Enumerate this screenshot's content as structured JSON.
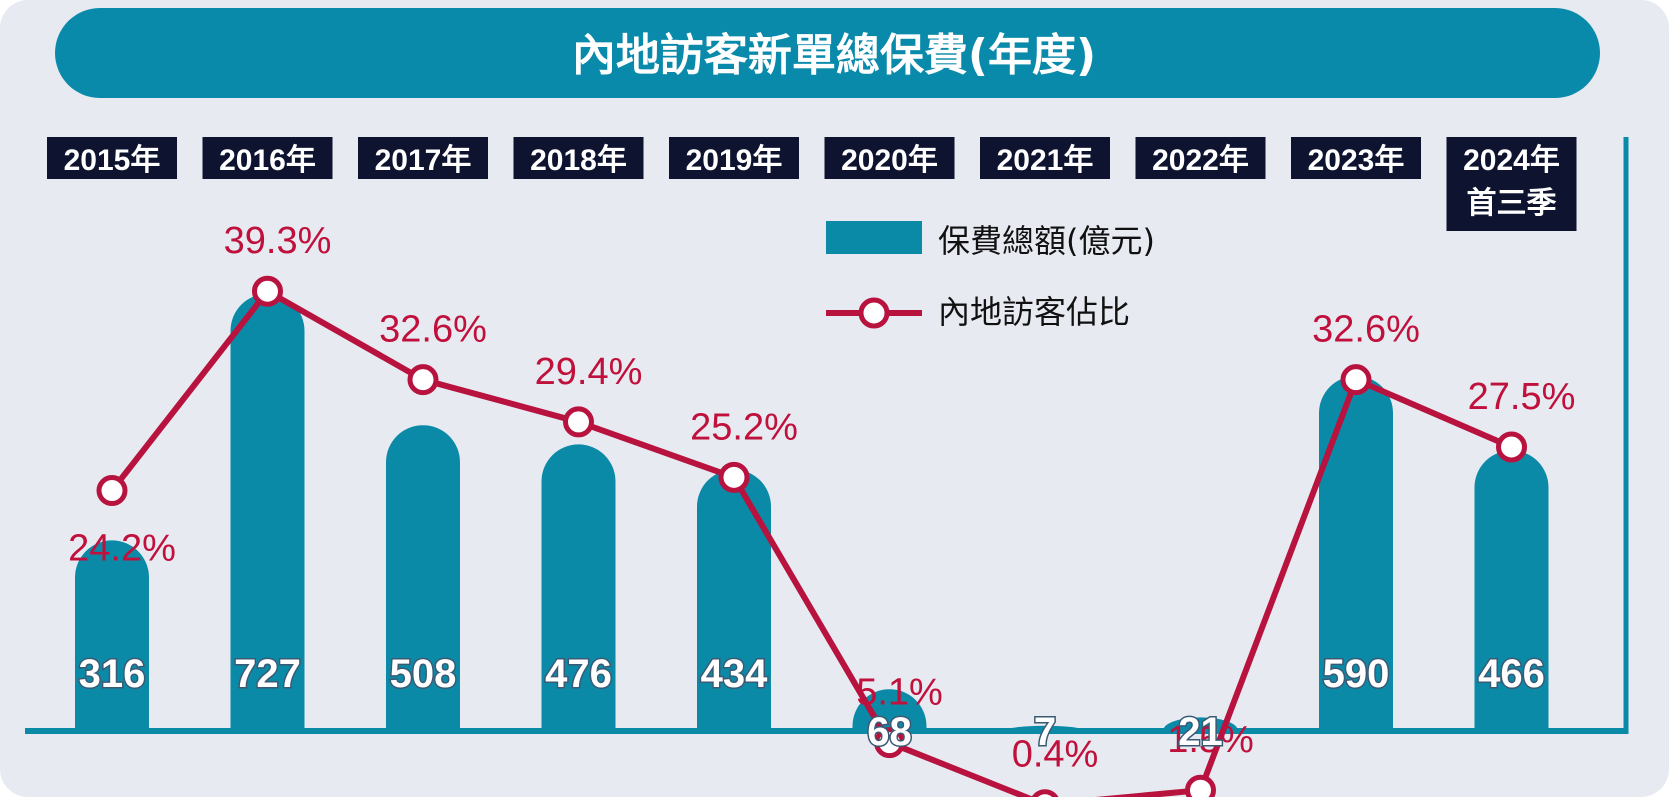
{
  "colors": {
    "panel": "#e7eaf1",
    "header": "#0a8aaa",
    "bar": "#0b8aa8",
    "axis": "#0b8aa8",
    "line": "#b8123f",
    "label_bg": "#0e1330",
    "pct_text": "#c0103c"
  },
  "chart_data": {
    "type": "bar",
    "title": "內地訪客新單總保費(年度)",
    "categories": [
      [
        "2015年"
      ],
      [
        "2016年"
      ],
      [
        "2017年"
      ],
      [
        "2018年"
      ],
      [
        "2019年"
      ],
      [
        "2020年"
      ],
      [
        "2021年"
      ],
      [
        "2022年"
      ],
      [
        "2023年"
      ],
      [
        "2024年",
        "首三季"
      ]
    ],
    "legend": {
      "position": "top-right",
      "bar_label": "保費總額(億元)",
      "line_label": "內地訪客佔比"
    },
    "series": [
      {
        "name": "保費總額(億元)",
        "type": "bar",
        "values": [
          316,
          727,
          508,
          476,
          434,
          68,
          7,
          21,
          590,
          466
        ],
        "labels": [
          "316",
          "727",
          "508",
          "476",
          "434",
          "68",
          "7",
          "21",
          "590",
          "466"
        ]
      },
      {
        "name": "內地訪客佔比",
        "type": "line",
        "values": [
          24.2,
          39.3,
          32.6,
          29.4,
          25.2,
          5.1,
          0.4,
          1.5,
          32.6,
          27.5
        ],
        "labels": [
          "24.2%",
          "39.3%",
          "32.6%",
          "29.4%",
          "25.2%",
          "5.1%",
          "0.4%",
          "1.5%",
          "32.6%",
          "27.5%"
        ]
      }
    ]
  }
}
